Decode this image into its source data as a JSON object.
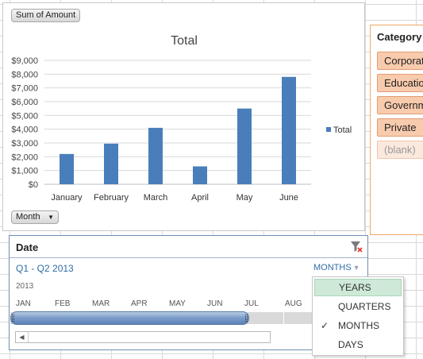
{
  "pivot_chart": {
    "value_field_button": "Sum of Amount",
    "axis_field_button": "Month",
    "dropdown_icon": "dropdown-arrow-icon"
  },
  "chart_data": {
    "type": "bar",
    "title": "Total",
    "categories": [
      "January",
      "February",
      "March",
      "April",
      "May",
      "June"
    ],
    "series": [
      {
        "name": "Total",
        "values": [
          2200,
          2950,
          4100,
          1300,
          5500,
          7800
        ],
        "color": "#4a7ebb"
      }
    ],
    "ylim": [
      0,
      9000
    ],
    "ytick_values": [
      0,
      1000,
      2000,
      3000,
      4000,
      5000,
      6000,
      7000,
      8000,
      9000
    ],
    "ytick_labels": [
      "$0",
      "$1,000",
      "$2,000",
      "$3,000",
      "$4,000",
      "$5,000",
      "$6,000",
      "$7,000",
      "$8,000",
      "$9,000"
    ],
    "grid": true,
    "legend": "right"
  },
  "category_slicer": {
    "title": "Category",
    "items": [
      "Corporate",
      "Education",
      "Government",
      "Private",
      "(blank)"
    ],
    "accent_color": "#f0a868"
  },
  "timeline": {
    "title": "Date",
    "range_label": "Q1 - Q2 2013",
    "level_label": "MONTHS",
    "year_label": "2013",
    "months": [
      "JAN",
      "FEB",
      "MAR",
      "APR",
      "MAY",
      "JUN",
      "JUL",
      "AUG"
    ],
    "selected_months": 6,
    "clear_filter_icon": "clear-filter-icon",
    "accent_color": "#5b82bb"
  },
  "level_menu": {
    "items": [
      "YEARS",
      "QUARTERS",
      "MONTHS",
      "DAYS"
    ],
    "highlighted": "YEARS",
    "checked": "MONTHS"
  }
}
